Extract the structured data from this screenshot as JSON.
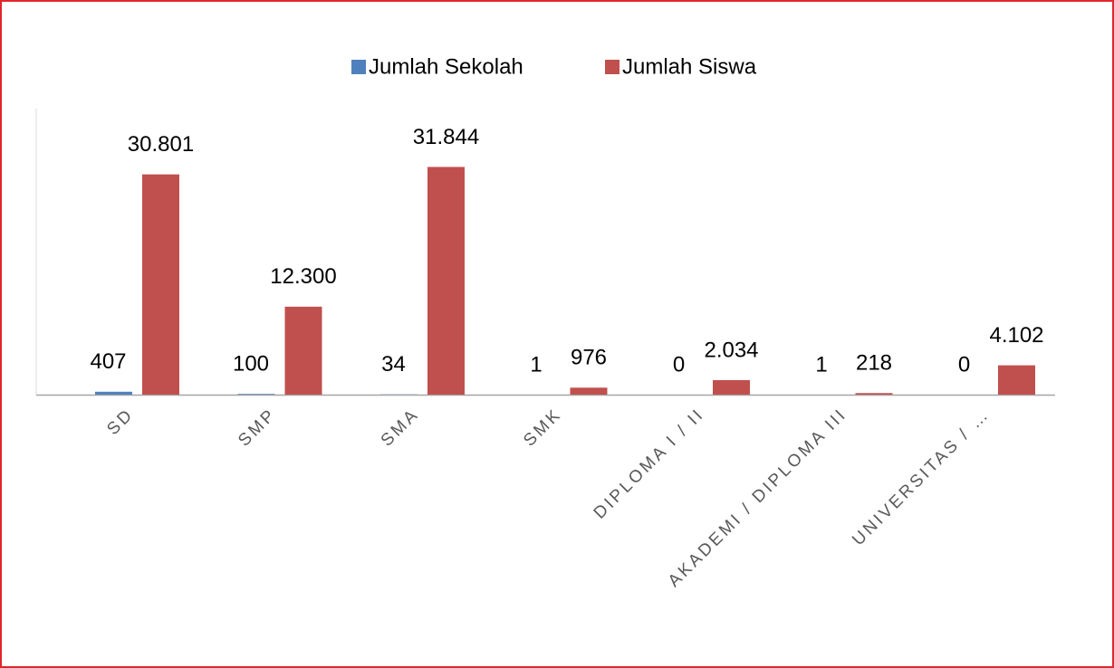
{
  "chart_data": {
    "type": "bar",
    "categories": [
      "SD",
      "SMP",
      "SMA",
      "SMK",
      "DIPLOMA I / II",
      "AKADEMI / DIPLOMA III",
      "UNIVERSITAS / …"
    ],
    "series": [
      {
        "name": "Jumlah Sekolah",
        "color": "#4f81bd",
        "values": [
          407,
          100,
          34,
          1,
          0,
          1,
          0
        ]
      },
      {
        "name": "Jumlah Siswa",
        "color": "#c0504d",
        "values": [
          30801,
          12300,
          31844,
          976,
          2034,
          218,
          4102
        ],
        "value_labels": [
          "30.801",
          "12.300",
          "31.844",
          "976",
          "2.034",
          "218",
          "4.102"
        ]
      }
    ],
    "ylim": [
      0,
      40000
    ]
  }
}
